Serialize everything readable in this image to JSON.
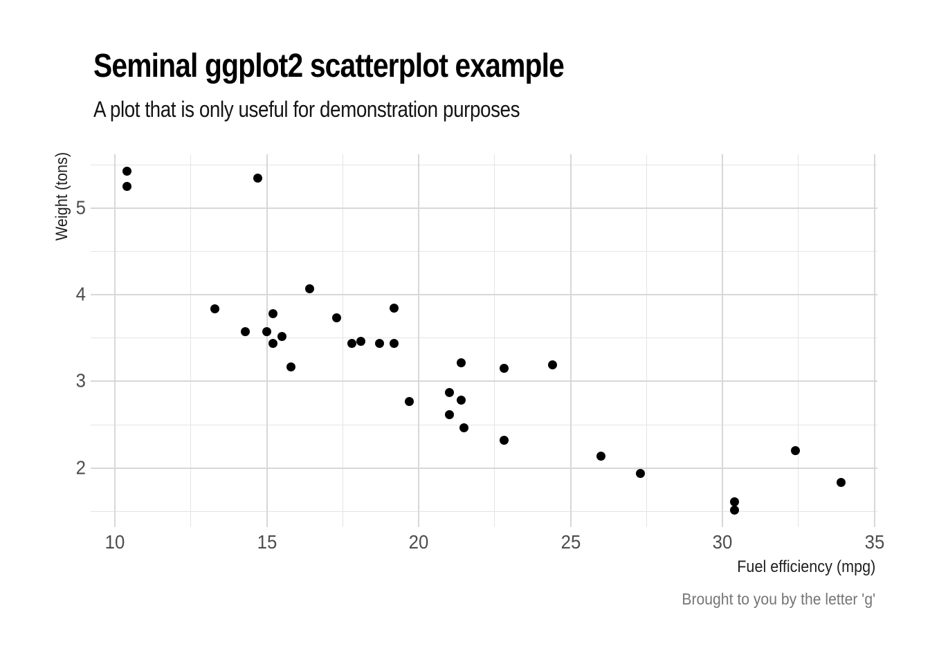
{
  "header": {
    "title": "Seminal ggplot2 scatterplot example",
    "subtitle": "A plot that is only useful for demonstration purposes"
  },
  "chart_data": {
    "type": "scatter",
    "title": "Seminal ggplot2 scatterplot example",
    "subtitle": "A plot that is only useful for demonstration purposes",
    "caption": "Brought to you by the letter 'g'",
    "xlabel": "Fuel efficiency (mpg)",
    "ylabel": "Weight (tons)",
    "xlim": [
      9.2,
      35.1
    ],
    "ylim": [
      1.32,
      5.62
    ],
    "x_ticks": [
      10,
      15,
      20,
      25,
      30,
      35
    ],
    "y_ticks": [
      2,
      3,
      4,
      5
    ],
    "x_minor_ticks": [
      12.5,
      17.5,
      22.5,
      27.5,
      32.5
    ],
    "y_minor_ticks": [
      1.5,
      2.5,
      3.5,
      4.5,
      5.5
    ],
    "grid": true,
    "legend": "none",
    "point_color": "#000000",
    "background_color": "#ffffff",
    "points": [
      [
        21.0,
        2.62
      ],
      [
        21.0,
        2.875
      ],
      [
        22.8,
        2.32
      ],
      [
        21.4,
        3.215
      ],
      [
        18.7,
        3.44
      ],
      [
        18.1,
        3.46
      ],
      [
        14.3,
        3.57
      ],
      [
        24.4,
        3.19
      ],
      [
        22.8,
        3.15
      ],
      [
        19.2,
        3.44
      ],
      [
        17.8,
        3.44
      ],
      [
        16.4,
        4.07
      ],
      [
        17.3,
        3.73
      ],
      [
        15.2,
        3.78
      ],
      [
        10.4,
        5.25
      ],
      [
        10.4,
        5.424
      ],
      [
        14.7,
        5.345
      ],
      [
        32.4,
        2.2
      ],
      [
        30.4,
        1.615
      ],
      [
        33.9,
        1.835
      ],
      [
        21.5,
        2.465
      ],
      [
        15.5,
        3.52
      ],
      [
        15.2,
        3.435
      ],
      [
        13.3,
        3.84
      ],
      [
        19.2,
        3.845
      ],
      [
        27.3,
        1.935
      ],
      [
        26.0,
        2.14
      ],
      [
        30.4,
        1.513
      ],
      [
        15.8,
        3.17
      ],
      [
        19.7,
        2.77
      ],
      [
        15.0,
        3.57
      ],
      [
        21.4,
        2.78
      ]
    ]
  }
}
